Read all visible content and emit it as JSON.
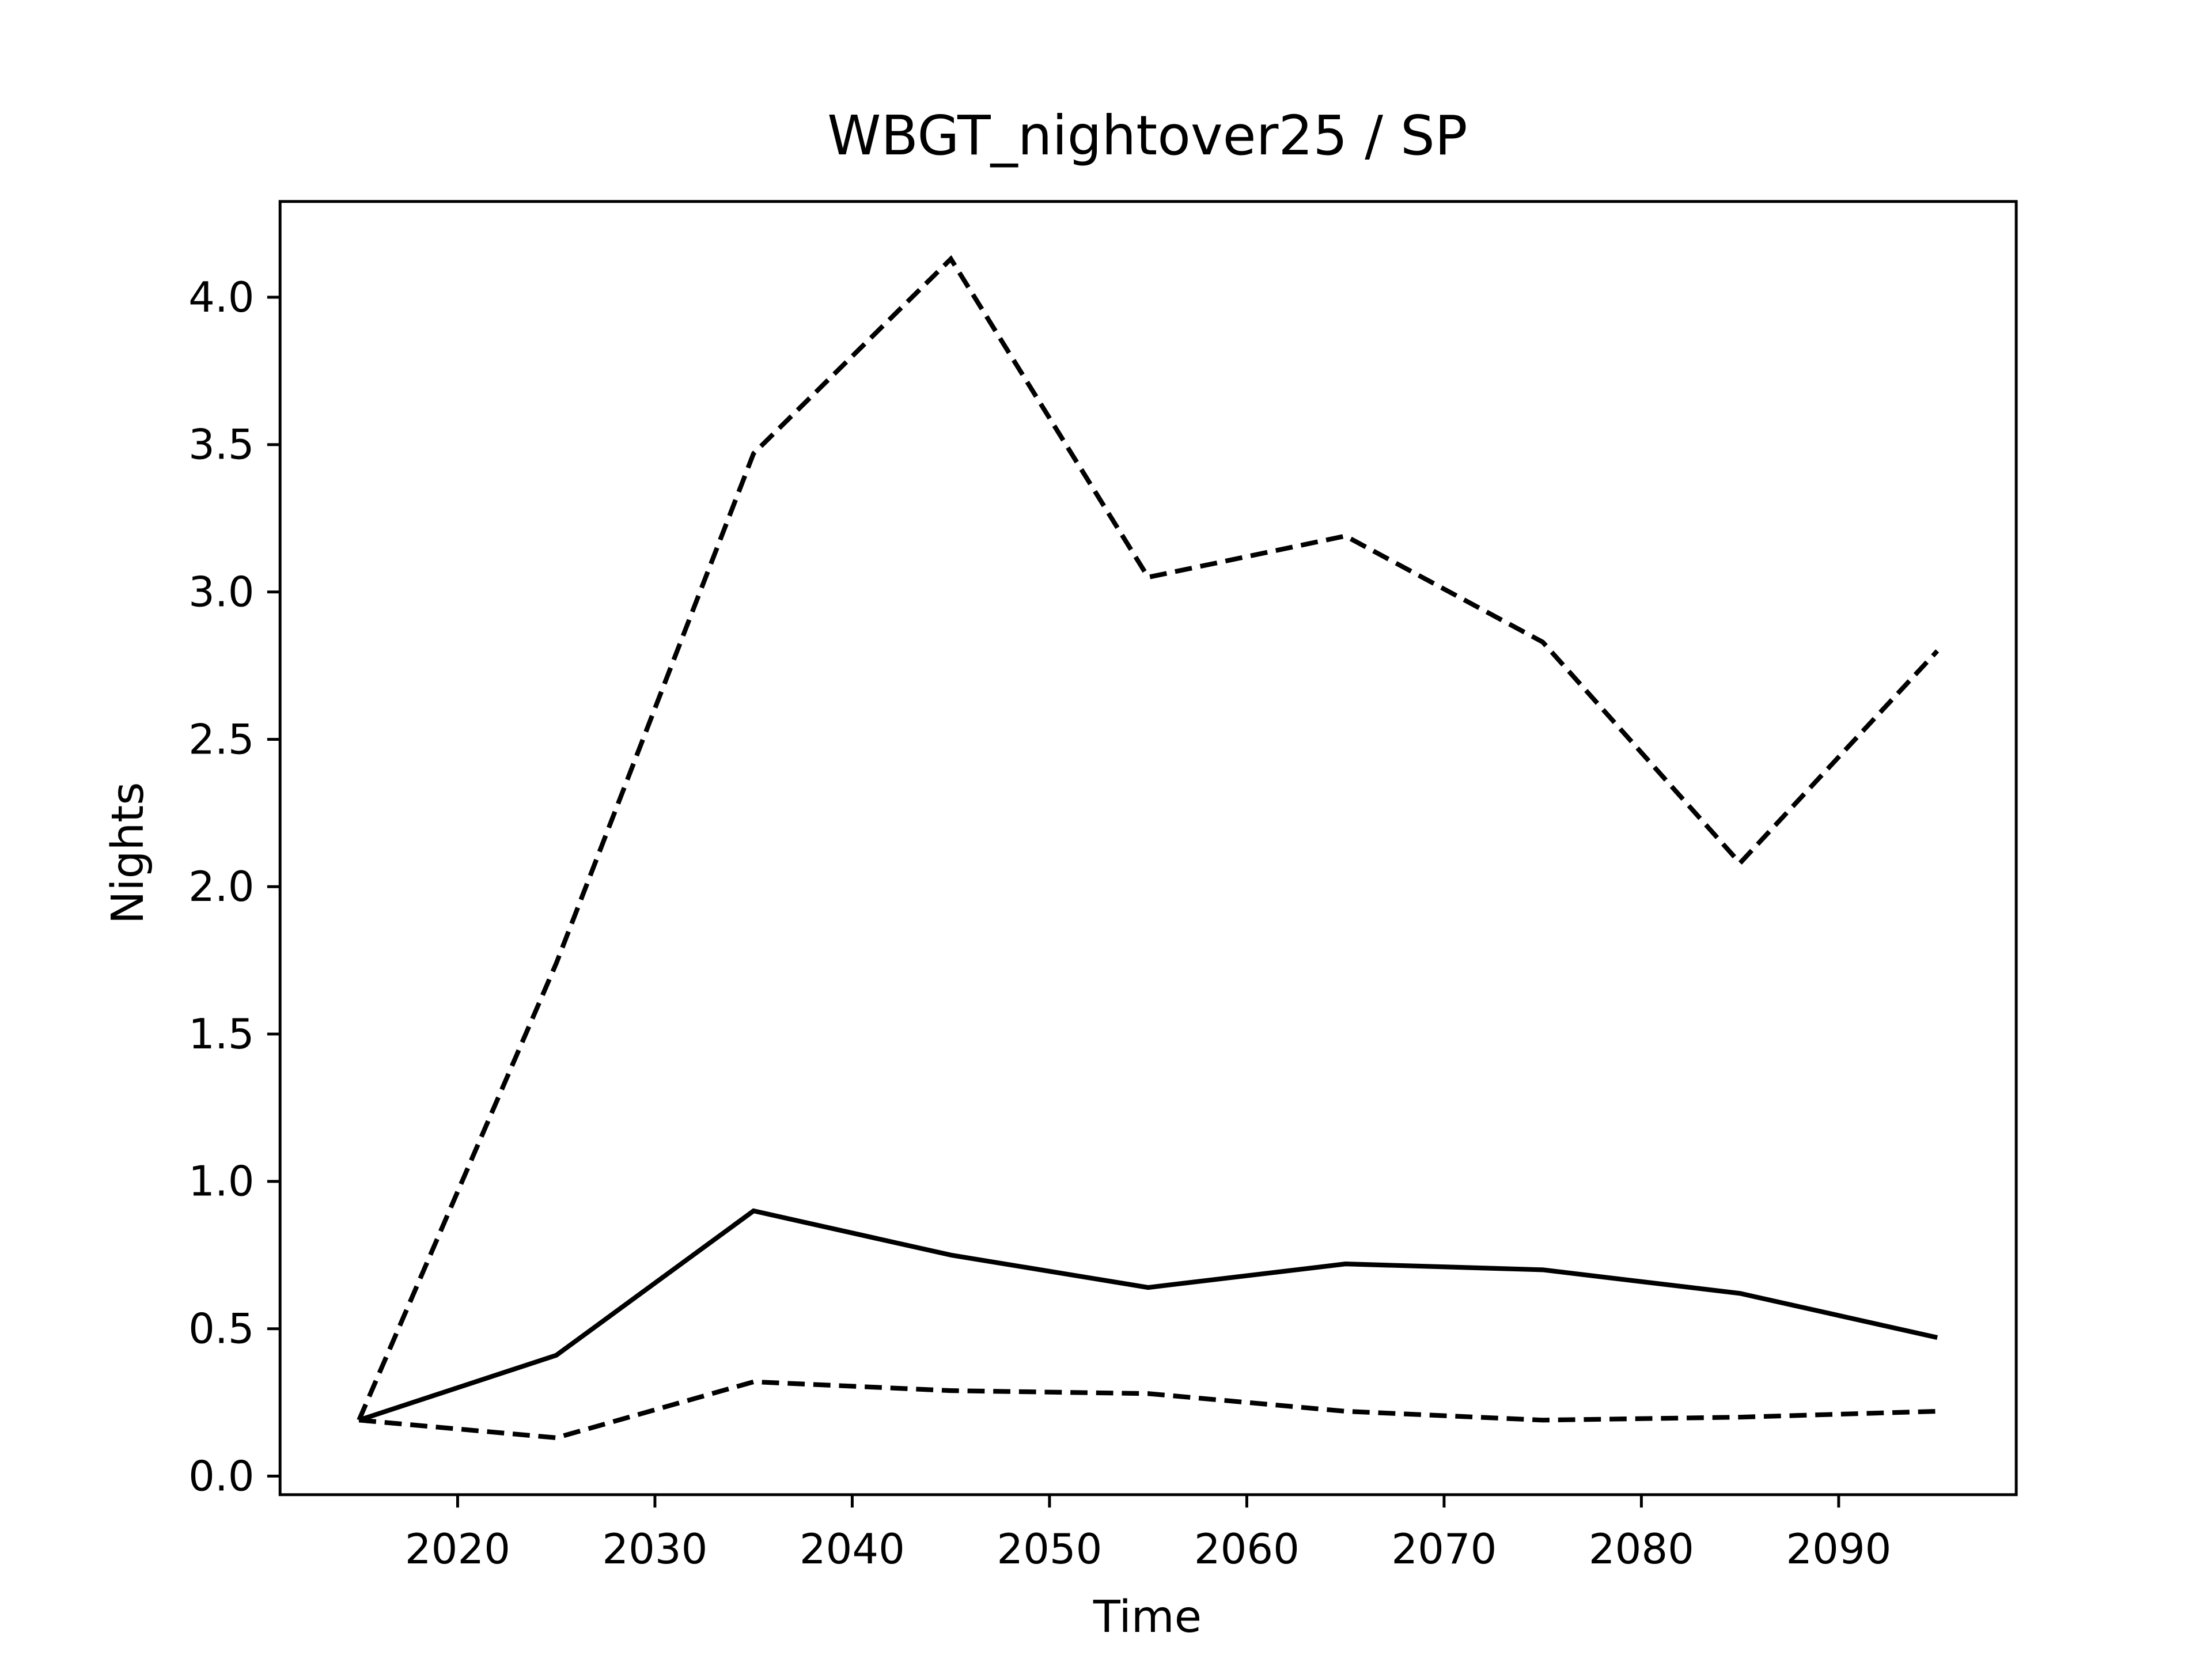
{
  "chart_data": {
    "type": "line",
    "title": "WBGT_nightover25 / SP",
    "xlabel": "Time",
    "ylabel": "Nights",
    "x": [
      2015,
      2025,
      2035,
      2045,
      2055,
      2065,
      2075,
      2085,
      2095
    ],
    "series": [
      {
        "color": "#000000",
        "linestyle": "solid",
        "values": [
          0.19,
          0.41,
          0.9,
          0.75,
          0.64,
          0.72,
          0.7,
          0.62,
          0.47
        ]
      },
      {
        "color": "#000000",
        "linestyle": "dashed",
        "values": [
          0.19,
          1.74,
          3.47,
          4.13,
          3.05,
          3.19,
          2.83,
          2.08,
          2.8
        ]
      },
      {
        "color": "#000000",
        "linestyle": "dashed",
        "values": [
          0.19,
          0.13,
          0.32,
          0.29,
          0.28,
          0.22,
          0.19,
          0.2,
          0.22
        ]
      }
    ],
    "xlim": [
      2011,
      2099
    ],
    "ylim": [
      -0.063,
      4.325
    ],
    "xticks": [
      2020,
      2030,
      2040,
      2050,
      2060,
      2070,
      2080,
      2090
    ],
    "yticks": [
      {
        "value": 0,
        "label": "0.0"
      },
      0.5,
      {
        "value": 1,
        "label": "1.0"
      },
      1.5,
      {
        "value": 2,
        "label": "2.0"
      },
      2.5,
      {
        "value": 3,
        "label": "3.0"
      },
      3.5,
      {
        "value": 4,
        "label": "4.0"
      }
    ],
    "grid": false
  }
}
